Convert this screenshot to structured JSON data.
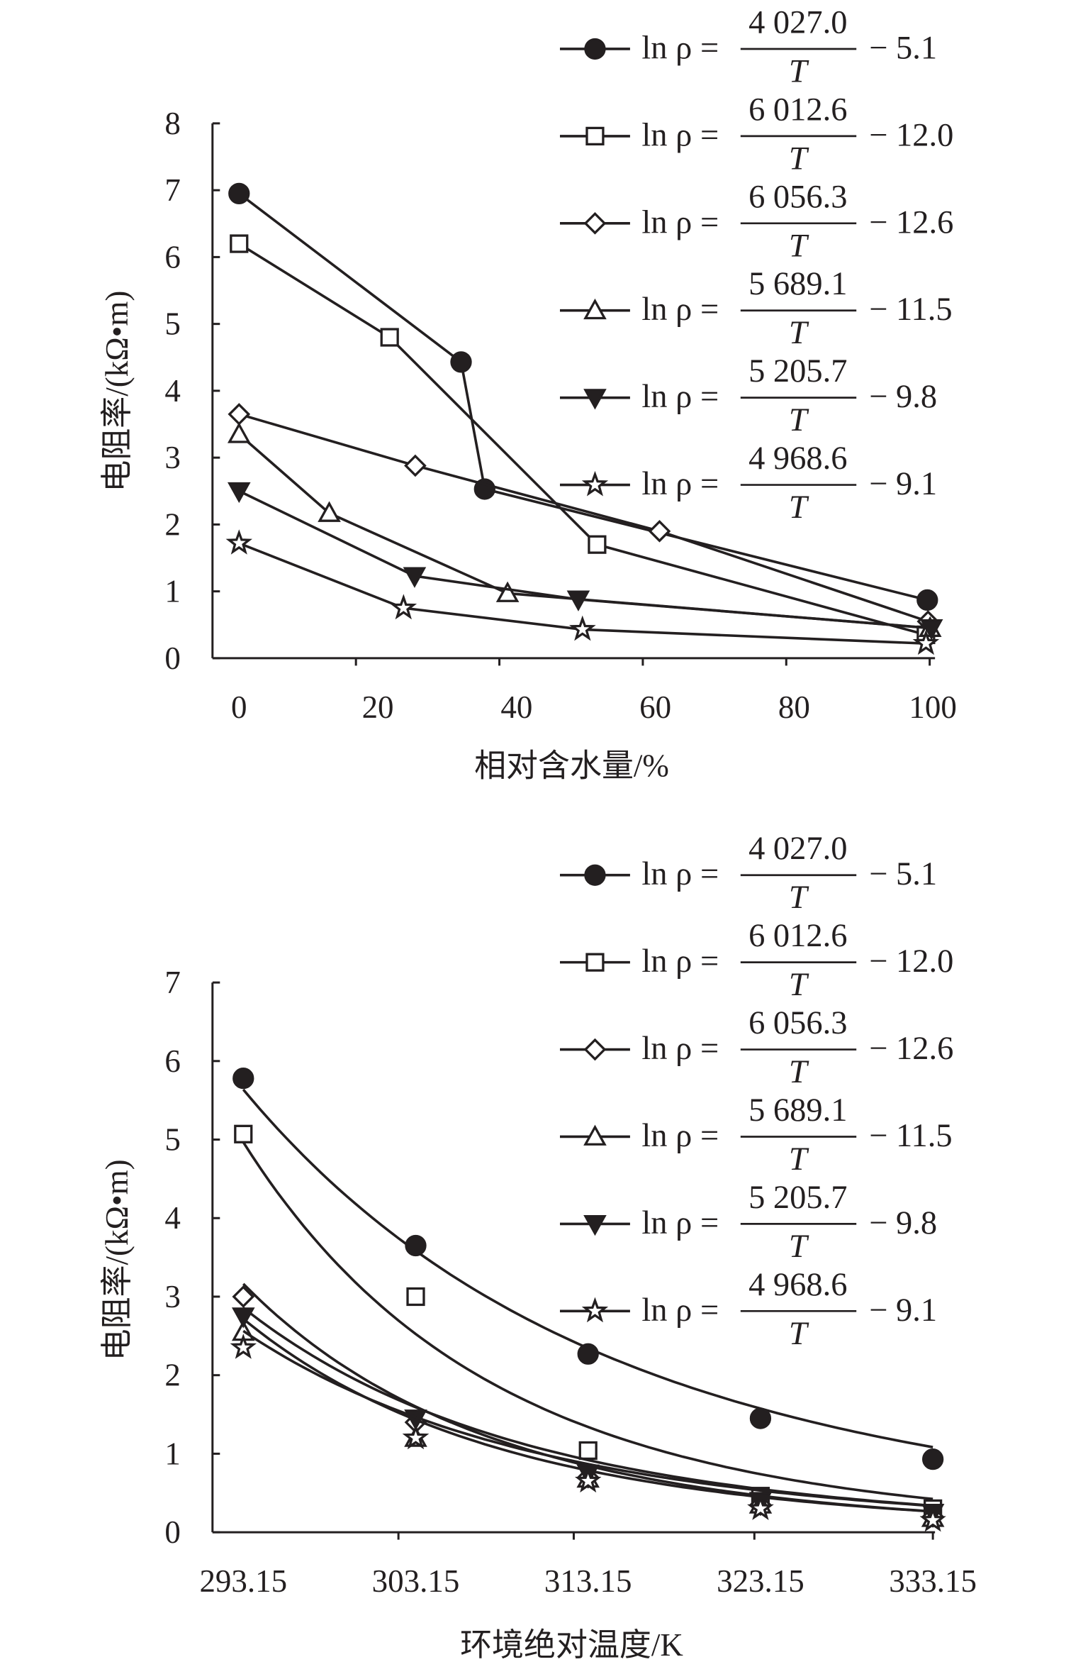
{
  "chart_data": [
    {
      "type": "line",
      "title": "",
      "xlabel": "相对含水量/%",
      "ylabel": "电阻率/(kΩ•m)",
      "xlim": [
        0,
        100
      ],
      "ylim": [
        0,
        8
      ],
      "xticks": [
        "0",
        "20",
        "40",
        "60",
        "80",
        "100"
      ],
      "yticks": [
        "0",
        "1",
        "2",
        "3",
        "4",
        "5",
        "6",
        "7",
        "8"
      ],
      "legend_position": "top-right",
      "grid": false,
      "series": [
        {
          "marker": "filled-circle",
          "lhs": "ln ρ =",
          "numerator": "4 027.0",
          "denominator": "T",
          "constant": "− 5.1",
          "x": [
            0,
            32,
            35.4,
            99.2
          ],
          "y": [
            6.95,
            4.43,
            2.53,
            0.87
          ]
        },
        {
          "marker": "open-square",
          "lhs": "ln ρ =",
          "numerator": "6 012.6",
          "denominator": "T",
          "constant": "− 12.0",
          "x": [
            0,
            21.7,
            51.6,
            99
          ],
          "y": [
            6.2,
            4.8,
            1.7,
            0.35
          ]
        },
        {
          "marker": "open-diamond",
          "lhs": "ln ρ =",
          "numerator": "6 056.3",
          "denominator": "T",
          "constant": "− 12.6",
          "x": [
            0,
            25.4,
            60.6,
            99.3
          ],
          "y": [
            3.65,
            2.88,
            1.9,
            0.55
          ]
        },
        {
          "marker": "open-triangle",
          "lhs": "ln ρ =",
          "numerator": "5 689.1",
          "denominator": "T",
          "constant": "− 11.5",
          "x": [
            0,
            13,
            38.7,
            99.6
          ],
          "y": [
            3.35,
            2.17,
            0.97,
            0.45
          ]
        },
        {
          "marker": "filled-down-triangle",
          "lhs": "ln ρ =",
          "numerator": "5 205.7",
          "denominator": "T",
          "constant": "− 9.8",
          "x": [
            0,
            25.3,
            48.9,
            99.8
          ],
          "y": [
            2.5,
            1.23,
            0.88,
            0.45
          ]
        },
        {
          "marker": "open-star",
          "lhs": "ln ρ =",
          "numerator": "4 968.6",
          "denominator": "T",
          "constant": "− 9.1",
          "x": [
            0,
            23.7,
            49.5,
            99
          ],
          "y": [
            1.72,
            0.75,
            0.43,
            0.22
          ]
        }
      ]
    },
    {
      "type": "line",
      "title": "",
      "xlabel": "环境绝对温度/K",
      "ylabel": "电阻率/(kΩ•m)",
      "xlim": [
        293.15,
        333.15
      ],
      "ylim": [
        0,
        7
      ],
      "xticks": [
        "293.15",
        "303.15",
        "313.15",
        "323.15",
        "333.15"
      ],
      "yticks": [
        "0",
        "1",
        "2",
        "3",
        "4",
        "5",
        "6",
        "7"
      ],
      "legend_position": "top-right",
      "grid": false,
      "series": [
        {
          "marker": "filled-circle",
          "lhs": "ln ρ =",
          "numerator": "4 027.0",
          "denominator": "T",
          "constant": "− 5.1",
          "a": 4027.0,
          "b": 5.1,
          "x": [
            293.15,
            303.15,
            313.15,
            323.15,
            333.15
          ],
          "y": [
            5.78,
            3.65,
            2.27,
            1.45,
            0.93
          ]
        },
        {
          "marker": "open-square",
          "lhs": "ln ρ =",
          "numerator": "6 012.6",
          "denominator": "T",
          "constant": "− 12.0",
          "a": 6012.6,
          "b": 12.0,
          "x": [
            293.15,
            303.15,
            313.15,
            323.15,
            333.15
          ],
          "y": [
            5.07,
            3.0,
            1.04,
            0.46,
            0.3
          ]
        },
        {
          "marker": "open-diamond",
          "lhs": "ln ρ =",
          "numerator": "6 056.3",
          "denominator": "T",
          "constant": "− 12.6",
          "a": 6056.3,
          "b": 12.6,
          "x": [
            293.15,
            303.15,
            313.15,
            323.15,
            333.15
          ],
          "y": [
            3.0,
            1.4,
            0.7,
            0.35,
            0.2
          ]
        },
        {
          "marker": "open-triangle",
          "lhs": "ln ρ =",
          "numerator": "5 689.1",
          "denominator": "T",
          "constant": "− 11.5",
          "a": 5689.1,
          "b": 11.5,
          "x": [
            293.15,
            303.15,
            313.15,
            323.15,
            333.15
          ],
          "y": [
            2.55,
            1.2,
            0.68,
            0.35,
            0.18
          ]
        },
        {
          "marker": "filled-down-triangle",
          "lhs": "ln ρ =",
          "numerator": "5 205.7",
          "denominator": "T",
          "constant": "− 9.8",
          "a": 5205.7,
          "b": 9.8,
          "x": [
            293.15,
            303.15,
            313.15,
            323.15,
            333.15
          ],
          "y": [
            2.75,
            1.45,
            0.75,
            0.4,
            0.25
          ]
        },
        {
          "marker": "open-star",
          "lhs": "ln ρ =",
          "numerator": "4 968.6",
          "denominator": "T",
          "constant": "− 9.1",
          "a": 4968.6,
          "b": 9.1,
          "x": [
            293.15,
            303.15,
            313.15,
            323.15,
            333.15
          ],
          "y": [
            2.35,
            1.2,
            0.65,
            0.3,
            0.15
          ]
        }
      ]
    }
  ]
}
